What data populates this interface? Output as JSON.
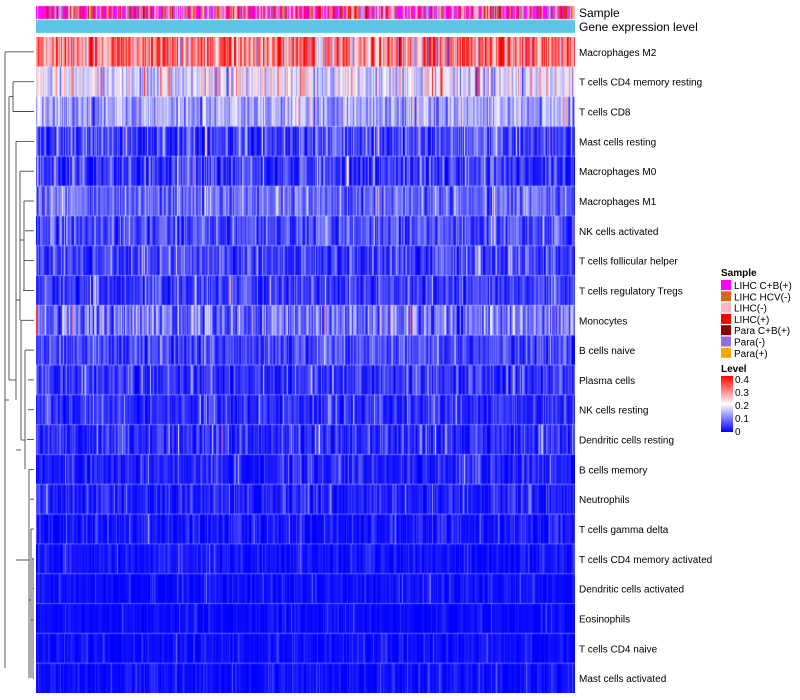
{
  "chart_data": {
    "type": "heatmap",
    "title": "",
    "n_samples": 520,
    "annotation_tracks": [
      {
        "name": "Sample",
        "label": "Sample"
      },
      {
        "name": "Gene expression level",
        "label": "Gene expression level",
        "color": "#5BC5E8"
      }
    ],
    "rows": [
      {
        "label": "Macrophages M2",
        "mean": 0.3,
        "spread": 0.09
      },
      {
        "label": "T cells CD4 memory resting",
        "mean": 0.17,
        "spread": 0.06
      },
      {
        "label": "T cells CD8",
        "mean": 0.13,
        "spread": 0.05
      },
      {
        "label": "Mast cells resting",
        "mean": 0.05,
        "spread": 0.05
      },
      {
        "label": "Macrophages M0",
        "mean": 0.04,
        "spread": 0.05
      },
      {
        "label": "Macrophages M1",
        "mean": 0.08,
        "spread": 0.04
      },
      {
        "label": "NK cells activated",
        "mean": 0.06,
        "spread": 0.04
      },
      {
        "label": "T cells follicular helper",
        "mean": 0.05,
        "spread": 0.04
      },
      {
        "label": "T cells regulatory  Tregs",
        "mean": 0.04,
        "spread": 0.04
      },
      {
        "label": "Monocytes",
        "mean": 0.09,
        "spread": 0.06
      },
      {
        "label": "B cells naive",
        "mean": 0.05,
        "spread": 0.04
      },
      {
        "label": "Plasma cells",
        "mean": 0.04,
        "spread": 0.04
      },
      {
        "label": "NK cells resting",
        "mean": 0.03,
        "spread": 0.03
      },
      {
        "label": "Dendritic cells resting",
        "mean": 0.03,
        "spread": 0.04
      },
      {
        "label": "B cells memory",
        "mean": 0.02,
        "spread": 0.03
      },
      {
        "label": "Neutrophils",
        "mean": 0.02,
        "spread": 0.03
      },
      {
        "label": "T cells gamma delta",
        "mean": 0.01,
        "spread": 0.03
      },
      {
        "label": "T cells CD4 memory activated",
        "mean": 0.01,
        "spread": 0.02
      },
      {
        "label": "Dendritic cells activated",
        "mean": 0.005,
        "spread": 0.02
      },
      {
        "label": "Eosinophils",
        "mean": 0.003,
        "spread": 0.015
      },
      {
        "label": "T cells CD4 naive",
        "mean": 0.003,
        "spread": 0.02
      },
      {
        "label": "Mast cells activated",
        "mean": 0.004,
        "spread": 0.02
      }
    ],
    "legend_sample": {
      "title": "Sample",
      "items": [
        {
          "label": "LIHC C+B(+)",
          "color": "#FF00FF"
        },
        {
          "label": "LIHC HCV(-)",
          "color": "#D2691E"
        },
        {
          "label": "LIHC(-)",
          "color": "#FFB6C1"
        },
        {
          "label": "LIHC(+)",
          "color": "#FF0000"
        },
        {
          "label": "Para C+B(+)",
          "color": "#8B0000"
        },
        {
          "label": "Para(-)",
          "color": "#9370DB"
        },
        {
          "label": "Para(+)",
          "color": "#FFA500"
        }
      ]
    },
    "legend_level": {
      "title": "Level",
      "range": [
        0,
        0.4
      ],
      "ticks": [
        "0.4",
        "0.3",
        "0.2",
        "0.1",
        "0"
      ],
      "colors": [
        "#0000FF",
        "#FFFFFF",
        "#FF0000"
      ]
    }
  }
}
